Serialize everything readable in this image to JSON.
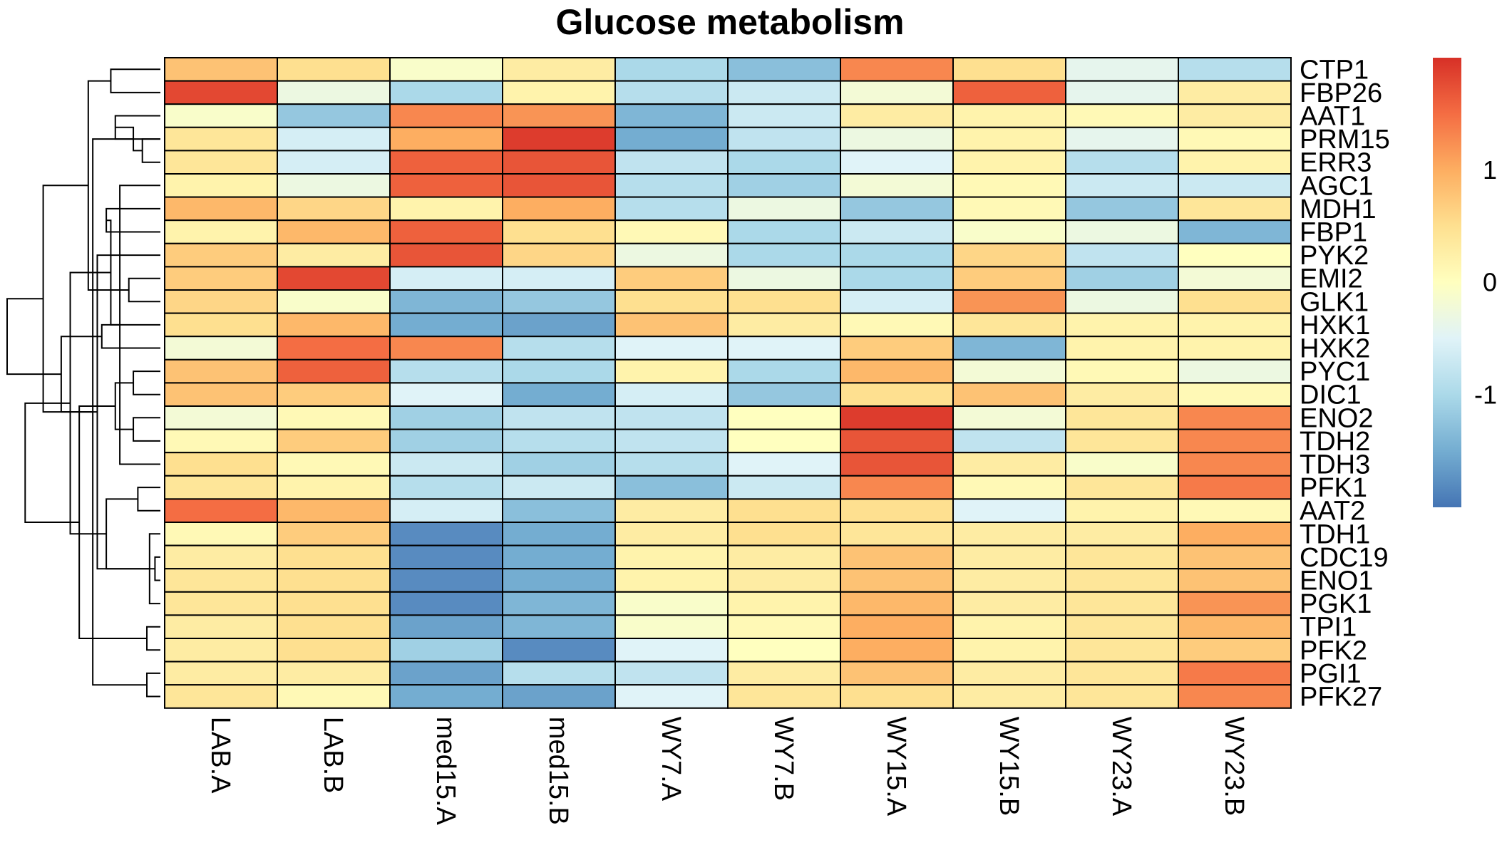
{
  "chart_data": {
    "type": "heatmap",
    "title": "Glucose metabolism",
    "columns": [
      "LAB.A",
      "LAB.B",
      "med15.A",
      "med15.B",
      "WY7.A",
      "WY7.B",
      "WY15.A",
      "WY15.B",
      "WY23.A",
      "WY23.B"
    ],
    "rows": [
      "CTP1",
      "FBP26",
      "AAT1",
      "PRM15",
      "ERR3",
      "AGC1",
      "MDH1",
      "FBP1",
      "PYK2",
      "EMI2",
      "GLK1",
      "HXK1",
      "HXK2",
      "PYC1",
      "DIC1",
      "ENO2",
      "TDH2",
      "TDH3",
      "PFK1",
      "AAT2",
      "TDH1",
      "CDC19",
      "ENO1",
      "PGK1",
      "TPI1",
      "PFK2",
      "PGI1",
      "PFK27"
    ],
    "values": [
      [
        0.8,
        0.5,
        -0.1,
        0.3,
        -1.0,
        -1.3,
        1.3,
        0.5,
        -0.4,
        -0.9
      ],
      [
        1.8,
        -0.3,
        -1.0,
        0.2,
        -0.9,
        -0.7,
        -0.2,
        1.6,
        -0.4,
        0.3
      ],
      [
        -0.1,
        -1.2,
        1.3,
        1.2,
        -1.4,
        -0.7,
        0.3,
        0.2,
        0.1,
        0.3
      ],
      [
        0.4,
        -0.6,
        1.0,
        1.9,
        -1.5,
        -0.8,
        -0.3,
        0.2,
        -0.4,
        0.1
      ],
      [
        0.4,
        -0.6,
        1.6,
        1.7,
        -0.8,
        -1.0,
        -0.5,
        0.2,
        -0.9,
        0.2
      ],
      [
        0.2,
        -0.3,
        1.6,
        1.7,
        -0.9,
        -1.1,
        -0.2,
        0.1,
        -0.7,
        -0.7
      ],
      [
        0.9,
        0.6,
        0.2,
        1.0,
        -0.9,
        -0.3,
        -1.2,
        0.1,
        -1.2,
        0.4
      ],
      [
        0.2,
        0.9,
        1.6,
        0.5,
        0.1,
        -1.0,
        -0.7,
        -0.1,
        -0.3,
        -1.4
      ],
      [
        0.7,
        0.3,
        1.7,
        0.6,
        -0.3,
        -1.0,
        -1.0,
        0.6,
        -0.8,
        0.0
      ],
      [
        0.7,
        1.8,
        -0.6,
        -0.6,
        0.7,
        -0.3,
        -1.0,
        0.7,
        -1.1,
        -0.2
      ],
      [
        0.6,
        -0.1,
        -1.4,
        -1.2,
        0.5,
        0.5,
        -0.6,
        1.2,
        -0.3,
        0.5
      ],
      [
        0.5,
        0.9,
        -1.5,
        -1.6,
        0.8,
        0.3,
        0.1,
        0.4,
        0.2,
        0.2
      ],
      [
        -0.2,
        1.5,
        1.3,
        -0.9,
        -0.5,
        -0.5,
        0.7,
        -1.4,
        0.2,
        0.2
      ],
      [
        0.8,
        1.6,
        -0.9,
        -1.0,
        0.2,
        -1.0,
        0.9,
        -0.2,
        0.1,
        -0.3
      ],
      [
        0.8,
        0.7,
        -0.5,
        -1.5,
        -0.6,
        -1.2,
        0.5,
        0.8,
        0.3,
        0.1
      ],
      [
        -0.2,
        0.1,
        -1.1,
        -0.8,
        -0.8,
        0.0,
        1.9,
        -0.2,
        0.4,
        1.3
      ],
      [
        0.1,
        0.7,
        -1.1,
        -0.9,
        -0.8,
        0.0,
        1.7,
        -0.8,
        0.4,
        1.3
      ],
      [
        0.5,
        0.1,
        -0.7,
        -1.1,
        -0.9,
        -0.5,
        1.7,
        0.3,
        -0.1,
        1.3
      ],
      [
        0.4,
        0.2,
        -0.9,
        -0.7,
        -1.3,
        -0.7,
        1.3,
        0.1,
        0.4,
        1.4
      ],
      [
        1.5,
        0.9,
        -0.6,
        -1.3,
        0.3,
        0.5,
        0.5,
        -0.5,
        0.2,
        0.1
      ],
      [
        0.1,
        0.7,
        -1.8,
        -1.5,
        0.3,
        0.5,
        0.4,
        0.3,
        0.3,
        1.0
      ],
      [
        0.3,
        0.5,
        -1.8,
        -1.5,
        0.2,
        0.3,
        0.8,
        0.3,
        0.4,
        0.8
      ],
      [
        0.4,
        0.5,
        -1.8,
        -1.5,
        0.2,
        0.3,
        0.8,
        0.3,
        0.4,
        0.8
      ],
      [
        0.4,
        0.5,
        -1.8,
        -1.4,
        -0.1,
        0.2,
        0.9,
        0.3,
        0.4,
        1.2
      ],
      [
        0.3,
        0.5,
        -1.6,
        -1.4,
        -0.1,
        0.1,
        1.0,
        0.2,
        0.4,
        0.9
      ],
      [
        0.3,
        0.5,
        -1.1,
        -1.8,
        -0.5,
        0.0,
        1.0,
        0.2,
        0.4,
        0.7
      ],
      [
        0.3,
        0.3,
        -1.6,
        -0.9,
        -0.8,
        0.3,
        0.8,
        0.3,
        0.4,
        1.4
      ],
      [
        0.4,
        0.1,
        -1.5,
        -1.6,
        -0.5,
        0.4,
        0.5,
        0.3,
        0.4,
        1.3
      ]
    ],
    "color_scale": {
      "min": -2,
      "max": 2,
      "stops": [
        "#4575b4",
        "#74add1",
        "#abd9e9",
        "#e0f3f8",
        "#ffffbf",
        "#fee090",
        "#fdae61",
        "#f46d43",
        "#d73027"
      ]
    },
    "legend": {
      "position": "right",
      "ticks": [
        {
          "value": 1,
          "label": "1"
        },
        {
          "value": 0,
          "label": "0"
        },
        {
          "value": -1,
          "label": "-1"
        }
      ]
    },
    "row_dendrogram": {
      "leaves_in_order": true,
      "merges": [
        [
          3,
          4,
          0.2
        ],
        [
          2,
          3,
          0.5
        ],
        [
          13,
          14,
          0.3
        ],
        [
          15,
          16,
          0.3
        ],
        [
          5,
          17,
          0.45
        ],
        [
          6,
          7,
          0.6
        ],
        [
          18,
          19,
          0.25
        ],
        [
          21,
          22,
          0.06
        ],
        [
          20,
          23,
          0.12
        ],
        [
          24,
          25,
          0.15
        ],
        [
          26,
          27,
          0.15
        ],
        [
          28,
          29,
          0.3
        ],
        [
          9,
          10,
          0.35
        ],
        [
          0,
          1,
          0.55
        ],
        [
          30,
          31,
          0.5
        ],
        [
          32,
          33,
          0.55
        ],
        [
          34,
          35,
          0.6
        ],
        [
          11,
          12,
          0.65
        ],
        [
          36,
          8,
          0.7
        ],
        [
          38,
          39,
          0.75
        ],
        [
          40,
          41,
          0.8
        ],
        [
          37,
          42,
          0.9
        ],
        [
          43,
          44,
          1.0
        ],
        [
          45,
          46,
          1.1
        ],
        [
          47,
          48,
          1.3
        ],
        [
          49,
          50,
          1.5
        ],
        [
          51,
          52,
          1.7
        ]
      ]
    },
    "grid": false
  }
}
